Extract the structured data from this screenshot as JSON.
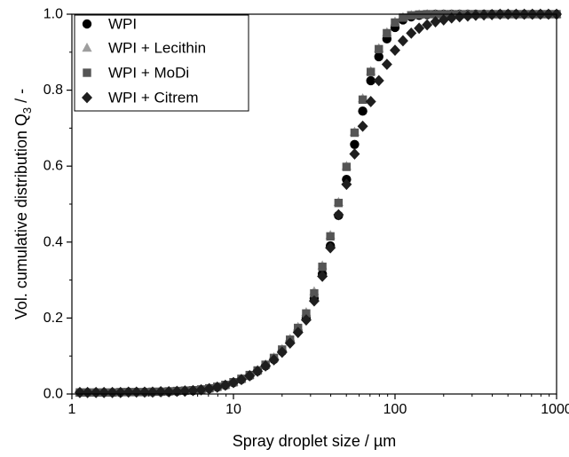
{
  "chart_data": {
    "type": "scatter",
    "x_scale": "log",
    "xlim": [
      1,
      1000
    ],
    "ylim": [
      0,
      1
    ],
    "grid": false,
    "legend_position": "top-left",
    "xlabel": "Spray droplet size / µm",
    "ylabel_main": "Vol. cumulative distribution Q",
    "ylabel_sub": "3",
    "ylabel_tail": " / -",
    "x_ticks": [
      {
        "value": 1,
        "label": "1"
      },
      {
        "value": 10,
        "label": "10"
      },
      {
        "value": 100,
        "label": "100"
      },
      {
        "value": 1000,
        "label": "1000"
      }
    ],
    "y_ticks": [
      {
        "value": 0.0,
        "label": "0.0"
      },
      {
        "value": 0.2,
        "label": "0.2"
      },
      {
        "value": 0.4,
        "label": "0.4"
      },
      {
        "value": 0.6,
        "label": "0.6"
      },
      {
        "value": 0.8,
        "label": "0.8"
      },
      {
        "value": 1.0,
        "label": "1.0"
      }
    ],
    "x": [
      1.12,
      1.25,
      1.41,
      1.58,
      1.78,
      2.0,
      2.24,
      2.51,
      2.82,
      3.16,
      3.55,
      3.98,
      4.47,
      5.01,
      5.62,
      6.31,
      7.08,
      7.94,
      8.91,
      10.0,
      11.2,
      12.6,
      14.1,
      15.8,
      17.8,
      20.0,
      22.4,
      25.1,
      28.2,
      31.6,
      35.5,
      39.8,
      44.7,
      50.1,
      56.2,
      63.1,
      70.8,
      79.4,
      89.1,
      100,
      112,
      126,
      141,
      158,
      178,
      200,
      224,
      251,
      282,
      316,
      355,
      398,
      447,
      501,
      562,
      631,
      708,
      794,
      891,
      1000
    ],
    "series": [
      {
        "name": "WPI",
        "marker": "circle",
        "color": "#000000",
        "values": [
          0.004,
          0.004,
          0.004,
          0.004,
          0.004,
          0.004,
          0.005,
          0.005,
          0.005,
          0.005,
          0.006,
          0.006,
          0.007,
          0.008,
          0.009,
          0.011,
          0.014,
          0.018,
          0.023,
          0.03,
          0.038,
          0.048,
          0.06,
          0.074,
          0.091,
          0.112,
          0.137,
          0.166,
          0.2,
          0.252,
          0.316,
          0.39,
          0.47,
          0.565,
          0.657,
          0.745,
          0.825,
          0.888,
          0.935,
          0.965,
          0.985,
          0.993,
          0.997,
          0.999,
          1.0,
          1.0,
          1.0,
          1.0,
          1.0,
          1.0,
          1.0,
          1.0,
          1.0,
          1.0,
          1.0,
          1.0,
          1.0,
          1.0,
          1.0,
          1.0
        ]
      },
      {
        "name": "WPI + Lecithin",
        "marker": "triangle",
        "color": "#9e9e9e",
        "values": [
          0.004,
          0.004,
          0.004,
          0.004,
          0.004,
          0.005,
          0.005,
          0.005,
          0.005,
          0.006,
          0.006,
          0.007,
          0.008,
          0.009,
          0.01,
          0.012,
          0.015,
          0.019,
          0.024,
          0.031,
          0.04,
          0.05,
          0.063,
          0.078,
          0.096,
          0.118,
          0.145,
          0.176,
          0.215,
          0.27,
          0.338,
          0.418,
          0.505,
          0.6,
          0.69,
          0.778,
          0.85,
          0.91,
          0.952,
          0.98,
          0.992,
          0.997,
          0.999,
          1.0,
          1.0,
          1.0,
          1.0,
          1.0,
          1.0,
          1.0,
          1.0,
          1.0,
          1.0,
          1.0,
          1.0,
          1.0,
          1.0,
          1.0,
          1.0,
          1.0
        ]
      },
      {
        "name": "WPI + MoDi",
        "marker": "square",
        "color": "#555555",
        "values": [
          0.004,
          0.004,
          0.004,
          0.004,
          0.004,
          0.005,
          0.005,
          0.005,
          0.005,
          0.006,
          0.006,
          0.007,
          0.008,
          0.009,
          0.01,
          0.012,
          0.015,
          0.019,
          0.024,
          0.031,
          0.04,
          0.05,
          0.062,
          0.077,
          0.095,
          0.117,
          0.143,
          0.174,
          0.212,
          0.265,
          0.335,
          0.415,
          0.503,
          0.598,
          0.688,
          0.775,
          0.848,
          0.908,
          0.95,
          0.978,
          0.991,
          0.997,
          0.999,
          1.0,
          1.0,
          1.0,
          1.0,
          1.0,
          1.0,
          1.0,
          1.0,
          1.0,
          1.0,
          1.0,
          1.0,
          1.0,
          1.0,
          1.0,
          1.0,
          1.0
        ]
      },
      {
        "name": "WPI + Citrem",
        "marker": "diamond",
        "color": "#1e1e1e",
        "values": [
          0.004,
          0.004,
          0.004,
          0.004,
          0.004,
          0.004,
          0.005,
          0.005,
          0.005,
          0.005,
          0.006,
          0.006,
          0.007,
          0.008,
          0.009,
          0.011,
          0.014,
          0.018,
          0.023,
          0.03,
          0.038,
          0.048,
          0.06,
          0.074,
          0.09,
          0.11,
          0.134,
          0.162,
          0.195,
          0.245,
          0.31,
          0.385,
          0.472,
          0.552,
          0.632,
          0.705,
          0.77,
          0.825,
          0.868,
          0.905,
          0.93,
          0.95,
          0.963,
          0.972,
          0.98,
          0.985,
          0.99,
          0.993,
          0.995,
          0.997,
          0.998,
          0.999,
          1.0,
          1.0,
          1.0,
          1.0,
          1.0,
          1.0,
          1.0,
          1.0
        ]
      }
    ]
  }
}
